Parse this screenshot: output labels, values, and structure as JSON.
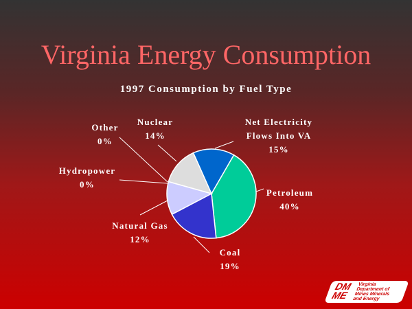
{
  "slide": {
    "title": "Virginia Energy Consumption",
    "logo_text": "DMME Virginia Department of Mines Minerals and Energy",
    "logo_mark": "DM ME",
    "logo_lines": [
      "Virginia",
      "Department of",
      "Mines Minerals",
      "and Energy"
    ]
  },
  "chart_data": {
    "type": "pie",
    "title": "1997 Consumption by Fuel Type",
    "start_angle_deg": 30,
    "slices": [
      {
        "label": "Petroleum",
        "value": 40,
        "pct": "40%",
        "color": "#00cc99"
      },
      {
        "label": "Coal",
        "value": 19,
        "pct": "19%",
        "color": "#3333cc"
      },
      {
        "label": "Natural Gas",
        "value": 12,
        "pct": "12%",
        "color": "#ccccff"
      },
      {
        "label": "Hydropower",
        "value": 0,
        "pct": "0%",
        "color": "#9999ff"
      },
      {
        "label": "Other",
        "value": 0,
        "pct": "0%",
        "color": "#999999"
      },
      {
        "label": "Nuclear",
        "value": 14,
        "pct": "14%",
        "color": "#dddddd"
      },
      {
        "label": "Net Electricity Flows Into VA",
        "value": 15,
        "pct": "15%",
        "color": "#0066cc"
      }
    ]
  }
}
